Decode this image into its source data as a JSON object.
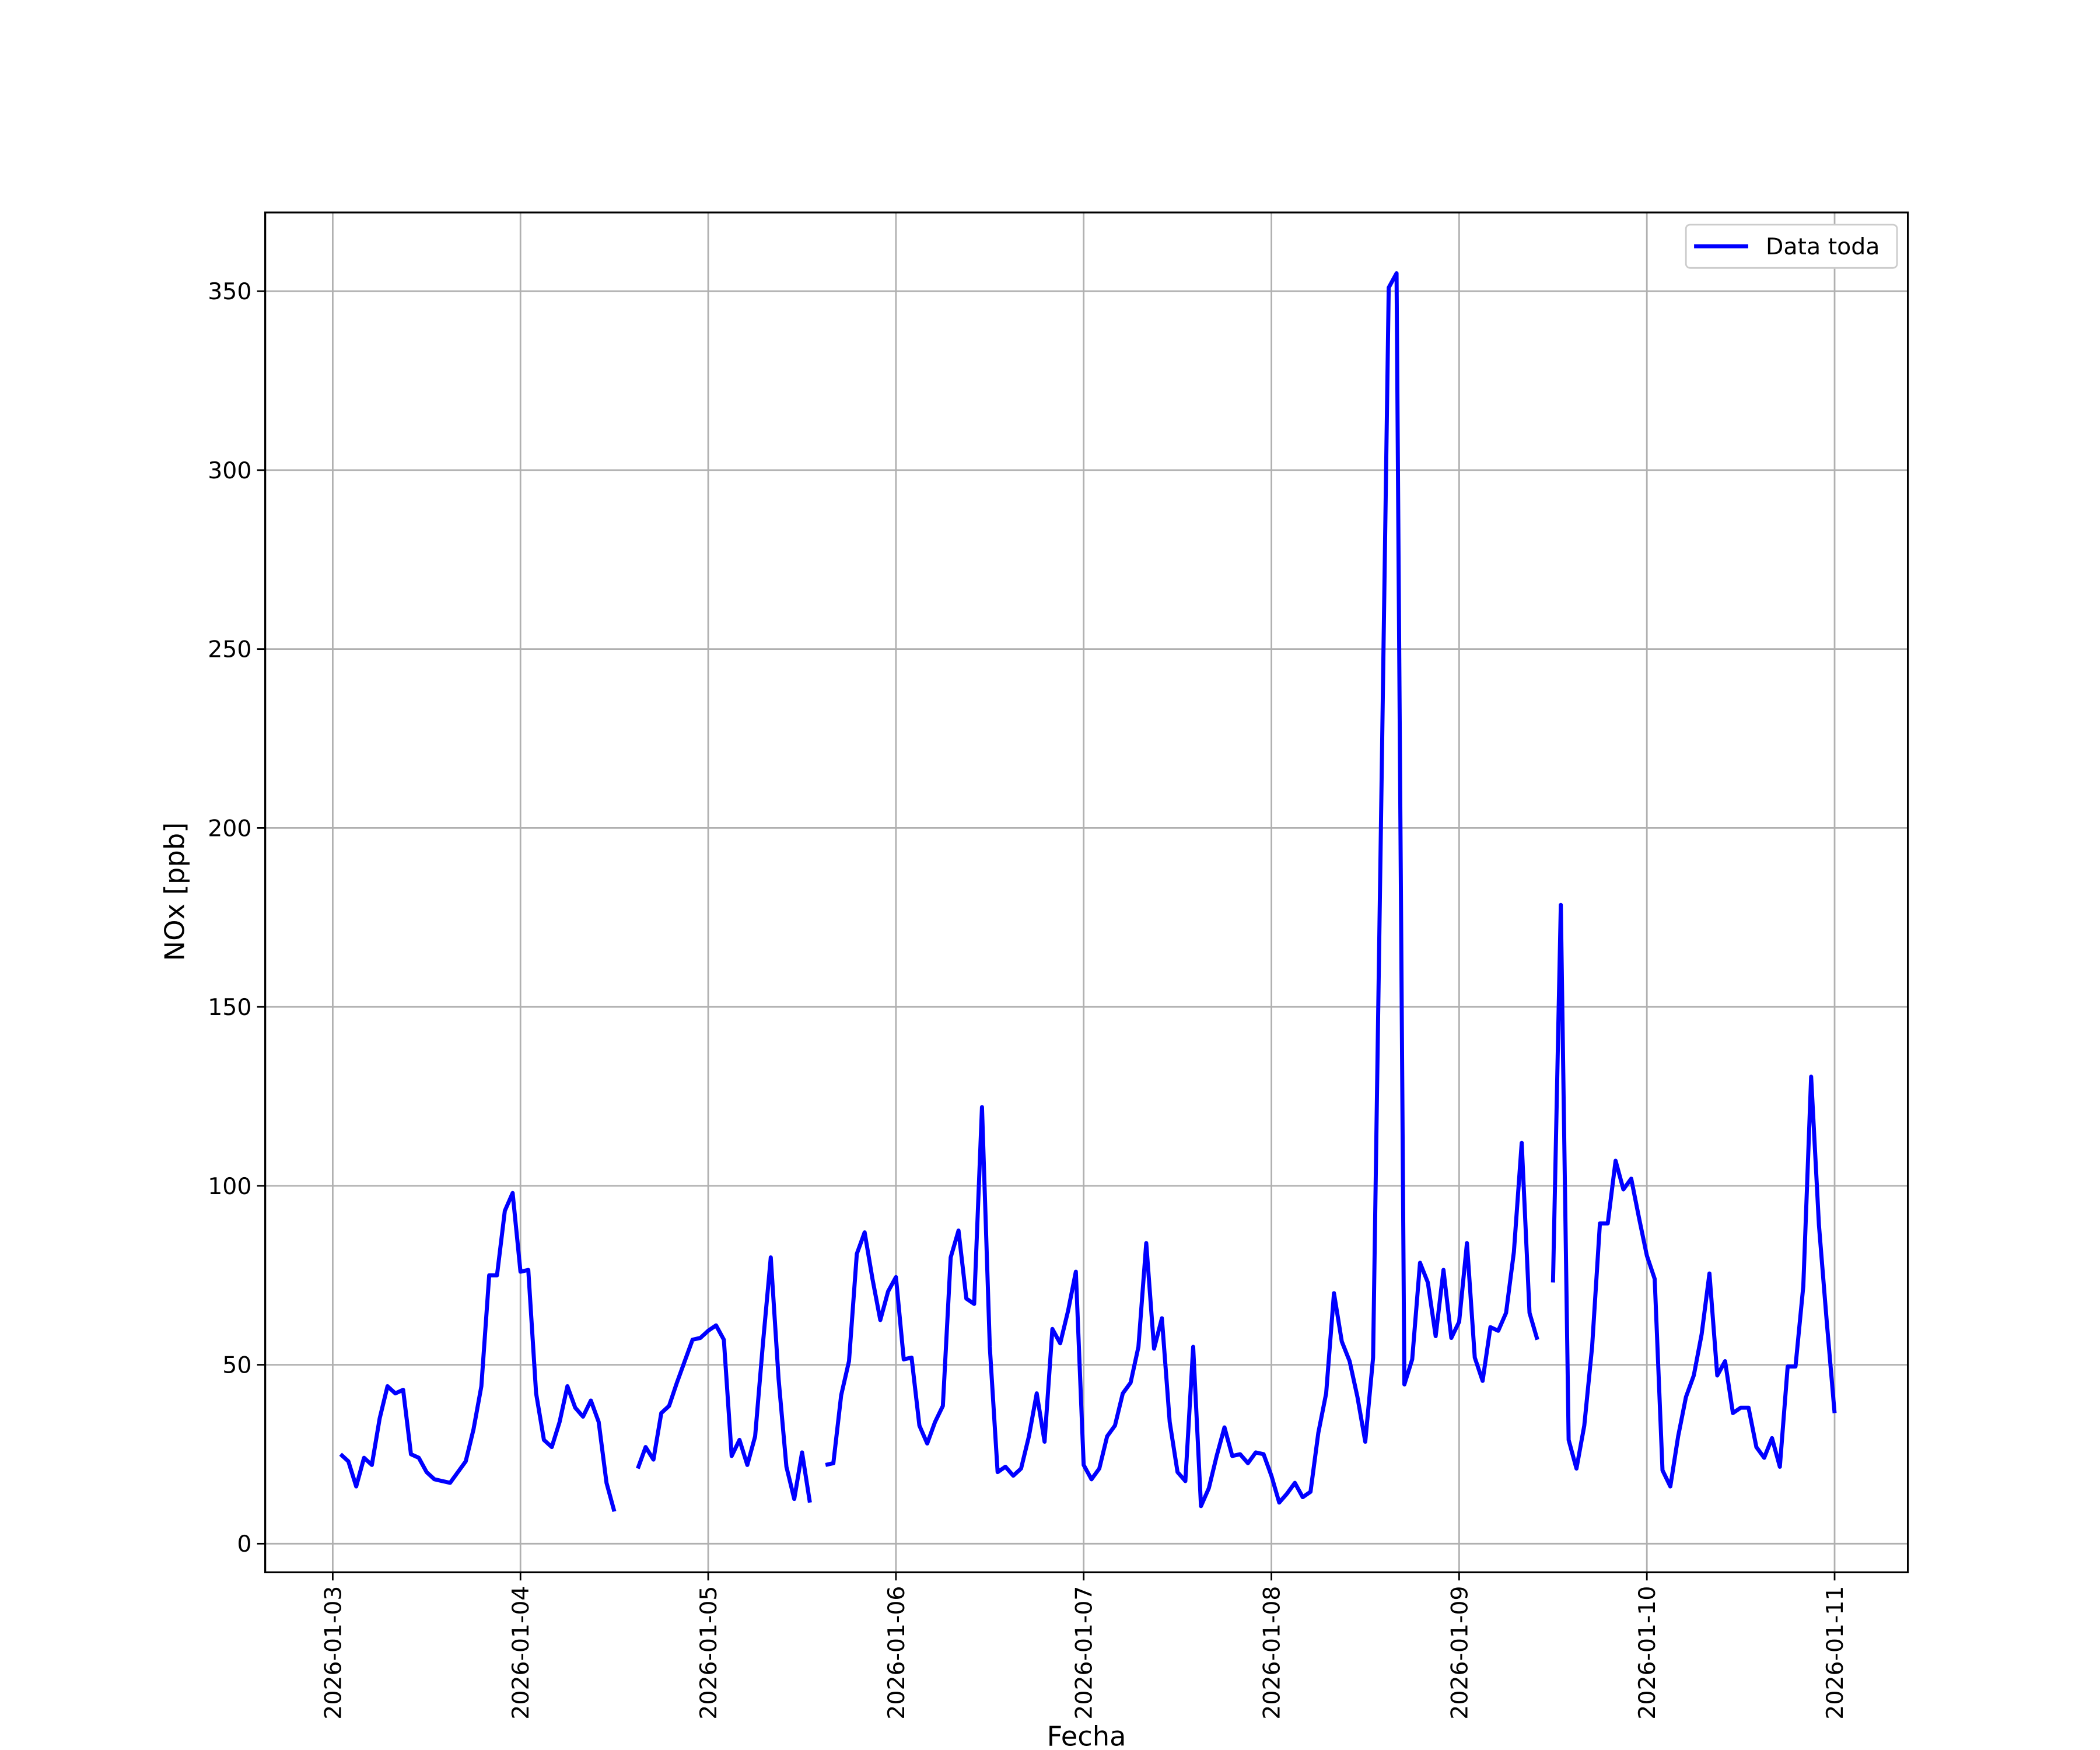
{
  "chart_data": {
    "type": "line",
    "x_label": "Fecha",
    "y_label": "NOx [ppb]",
    "xlim": [
      "2026-01-02 15:22",
      "2026-01-11 09:22"
    ],
    "xticks": [
      "2026-01-03",
      "2026-01-04",
      "2026-01-05",
      "2026-01-06",
      "2026-01-07",
      "2026-01-08",
      "2026-01-09",
      "2026-01-10",
      "2026-01-11"
    ],
    "ylim": [
      -8,
      372
    ],
    "yticks": [
      0,
      50,
      100,
      150,
      200,
      250,
      300,
      350
    ],
    "grid": true,
    "legend": "upper right",
    "x": [
      "2026-01-03 01:00",
      "2026-01-03 02:00",
      "2026-01-03 03:00",
      "2026-01-03 04:00",
      "2026-01-03 05:00",
      "2026-01-03 06:00",
      "2026-01-03 07:00",
      "2026-01-03 08:00",
      "2026-01-03 09:00",
      "2026-01-03 10:00",
      "2026-01-03 11:00",
      "2026-01-03 12:00",
      "2026-01-03 13:00",
      "2026-01-03 14:00",
      "2026-01-03 15:00",
      "2026-01-03 16:00",
      "2026-01-03 17:00",
      "2026-01-03 18:00",
      "2026-01-03 19:00",
      "2026-01-03 20:00",
      "2026-01-03 21:00",
      "2026-01-03 22:00",
      "2026-01-03 23:00",
      "2026-01-04 00:00",
      "2026-01-04 01:00",
      "2026-01-04 02:00",
      "2026-01-04 03:00",
      "2026-01-04 04:00",
      "2026-01-04 05:00",
      "2026-01-04 06:00",
      "2026-01-04 07:00",
      "2026-01-04 08:00",
      "2026-01-04 09:00",
      "2026-01-04 10:00",
      "2026-01-04 11:00",
      "2026-01-04 12:00",
      "2026-01-04 13:00",
      "2026-01-04 14:00",
      "2026-01-04 15:00",
      "2026-01-04 16:00",
      "2026-01-04 17:00",
      "2026-01-04 18:00",
      "2026-01-04 19:00",
      "2026-01-04 20:00",
      "2026-01-04 21:00",
      "2026-01-04 22:00",
      "2026-01-04 23:00",
      "2026-01-05 00:00",
      "2026-01-05 01:00",
      "2026-01-05 02:00",
      "2026-01-05 03:00",
      "2026-01-05 04:00",
      "2026-01-05 05:00",
      "2026-01-05 06:00",
      "2026-01-05 07:00",
      "2026-01-05 08:00",
      "2026-01-05 09:00",
      "2026-01-05 10:00",
      "2026-01-05 11:00",
      "2026-01-05 12:00",
      "2026-01-05 13:00",
      "2026-01-05 14:00",
      "2026-01-05 15:00",
      "2026-01-05 16:00",
      "2026-01-05 17:00",
      "2026-01-05 18:00",
      "2026-01-05 19:00",
      "2026-01-05 20:00",
      "2026-01-05 21:00",
      "2026-01-05 22:00",
      "2026-01-05 23:00",
      "2026-01-06 00:00",
      "2026-01-06 01:00",
      "2026-01-06 02:00",
      "2026-01-06 03:00",
      "2026-01-06 04:00",
      "2026-01-06 05:00",
      "2026-01-06 06:00",
      "2026-01-06 07:00",
      "2026-01-06 08:00",
      "2026-01-06 09:00",
      "2026-01-06 10:00",
      "2026-01-06 11:00",
      "2026-01-06 12:00",
      "2026-01-06 13:00",
      "2026-01-06 14:00",
      "2026-01-06 15:00",
      "2026-01-06 16:00",
      "2026-01-06 17:00",
      "2026-01-06 18:00",
      "2026-01-06 19:00",
      "2026-01-06 20:00",
      "2026-01-06 21:00",
      "2026-01-06 22:00",
      "2026-01-06 23:00",
      "2026-01-07 00:00",
      "2026-01-07 01:00",
      "2026-01-07 02:00",
      "2026-01-07 03:00",
      "2026-01-07 04:00",
      "2026-01-07 05:00",
      "2026-01-07 06:00",
      "2026-01-07 07:00",
      "2026-01-07 08:00",
      "2026-01-07 09:00",
      "2026-01-07 10:00",
      "2026-01-07 11:00",
      "2026-01-07 12:00",
      "2026-01-07 13:00",
      "2026-01-07 14:00",
      "2026-01-07 15:00",
      "2026-01-07 16:00",
      "2026-01-07 17:00",
      "2026-01-07 18:00",
      "2026-01-07 19:00",
      "2026-01-07 20:00",
      "2026-01-07 21:00",
      "2026-01-07 22:00",
      "2026-01-07 23:00",
      "2026-01-08 00:00",
      "2026-01-08 01:00",
      "2026-01-08 02:00",
      "2026-01-08 03:00",
      "2026-01-08 04:00",
      "2026-01-08 05:00",
      "2026-01-08 06:00",
      "2026-01-08 07:00",
      "2026-01-08 08:00",
      "2026-01-08 09:00",
      "2026-01-08 10:00",
      "2026-01-08 11:00",
      "2026-01-08 12:00",
      "2026-01-08 13:00",
      "2026-01-08 14:00",
      "2026-01-08 15:00",
      "2026-01-08 16:00",
      "2026-01-08 17:00",
      "2026-01-08 18:00",
      "2026-01-08 19:00",
      "2026-01-08 20:00",
      "2026-01-08 21:00",
      "2026-01-08 22:00",
      "2026-01-08 23:00",
      "2026-01-09 00:00",
      "2026-01-09 01:00",
      "2026-01-09 02:00",
      "2026-01-09 03:00",
      "2026-01-09 04:00",
      "2026-01-09 05:00",
      "2026-01-09 06:00",
      "2026-01-09 07:00",
      "2026-01-09 08:00",
      "2026-01-09 09:00",
      "2026-01-09 10:00",
      "2026-01-09 11:00",
      "2026-01-09 12:00",
      "2026-01-09 13:00",
      "2026-01-09 14:00",
      "2026-01-09 15:00",
      "2026-01-09 16:00",
      "2026-01-09 17:00",
      "2026-01-09 18:00",
      "2026-01-09 19:00",
      "2026-01-09 20:00",
      "2026-01-09 21:00",
      "2026-01-09 22:00",
      "2026-01-09 23:00",
      "2026-01-10 00:00",
      "2026-01-10 01:00",
      "2026-01-10 02:00",
      "2026-01-10 03:00",
      "2026-01-10 04:00",
      "2026-01-10 05:00",
      "2026-01-10 06:00",
      "2026-01-10 07:00",
      "2026-01-10 08:00",
      "2026-01-10 09:00",
      "2026-01-10 10:00",
      "2026-01-10 11:00",
      "2026-01-10 12:00",
      "2026-01-10 13:00",
      "2026-01-10 14:00",
      "2026-01-10 15:00",
      "2026-01-10 16:00",
      "2026-01-10 17:00",
      "2026-01-10 18:00",
      "2026-01-10 19:00",
      "2026-01-10 20:00",
      "2026-01-10 21:00",
      "2026-01-10 22:00",
      "2026-01-10 23:00",
      "2026-01-11 00:00"
    ],
    "series": [
      {
        "name": "Data toda",
        "color": "#0000ff",
        "values": [
          25,
          23,
          16,
          24,
          22,
          35,
          44,
          42,
          43,
          25,
          24,
          20,
          18,
          17.5,
          17,
          20,
          23,
          32,
          44,
          75,
          75,
          93,
          98,
          76,
          76.5,
          42,
          29,
          27,
          34,
          44,
          38,
          35.5,
          40,
          34,
          17,
          9,
          null,
          null,
          21,
          27,
          23.5,
          36.5,
          38.5,
          45,
          51,
          57,
          57.5,
          59.5,
          61,
          57,
          24.5,
          29,
          22,
          30,
          56,
          80,
          46,
          21.5,
          12.5,
          25.5,
          11.5,
          null,
          22,
          22.5,
          41.5,
          51,
          81,
          87,
          74,
          62.5,
          70.5,
          74.5,
          51.5,
          52,
          33,
          28,
          34,
          38.5,
          80,
          87.5,
          68.5,
          67,
          122,
          55,
          20,
          21.5,
          19,
          21,
          30,
          42,
          28.5,
          60,
          56,
          65,
          76,
          22,
          18,
          21,
          30,
          33,
          42,
          45,
          55,
          84,
          54.5,
          63,
          34,
          20,
          17.5,
          55,
          10.5,
          15.5,
          24.5,
          32.5,
          24.5,
          25,
          22.5,
          25.5,
          25,
          19,
          11.5,
          14,
          17,
          13,
          14.5,
          31,
          42,
          70,
          56.5,
          51,
          41,
          28.5,
          52,
          200,
          351,
          355,
          44.5,
          51.5,
          78.5,
          73,
          58,
          76.5,
          57.5,
          62,
          84,
          52,
          45.5,
          60.5,
          59.5,
          64.5,
          81.5,
          112,
          64.5,
          57,
          null,
          73,
          178.5,
          29,
          21,
          33,
          55,
          89.5,
          89.5,
          107,
          99,
          102,
          91,
          80.5,
          74,
          20.5,
          16,
          30,
          41,
          47,
          58.5,
          75.5,
          47,
          51,
          36.5,
          38,
          38,
          27,
          24,
          29.5,
          21.5,
          49.5,
          49.5,
          72,
          130.5,
          89,
          62,
          36.5
        ]
      }
    ]
  }
}
